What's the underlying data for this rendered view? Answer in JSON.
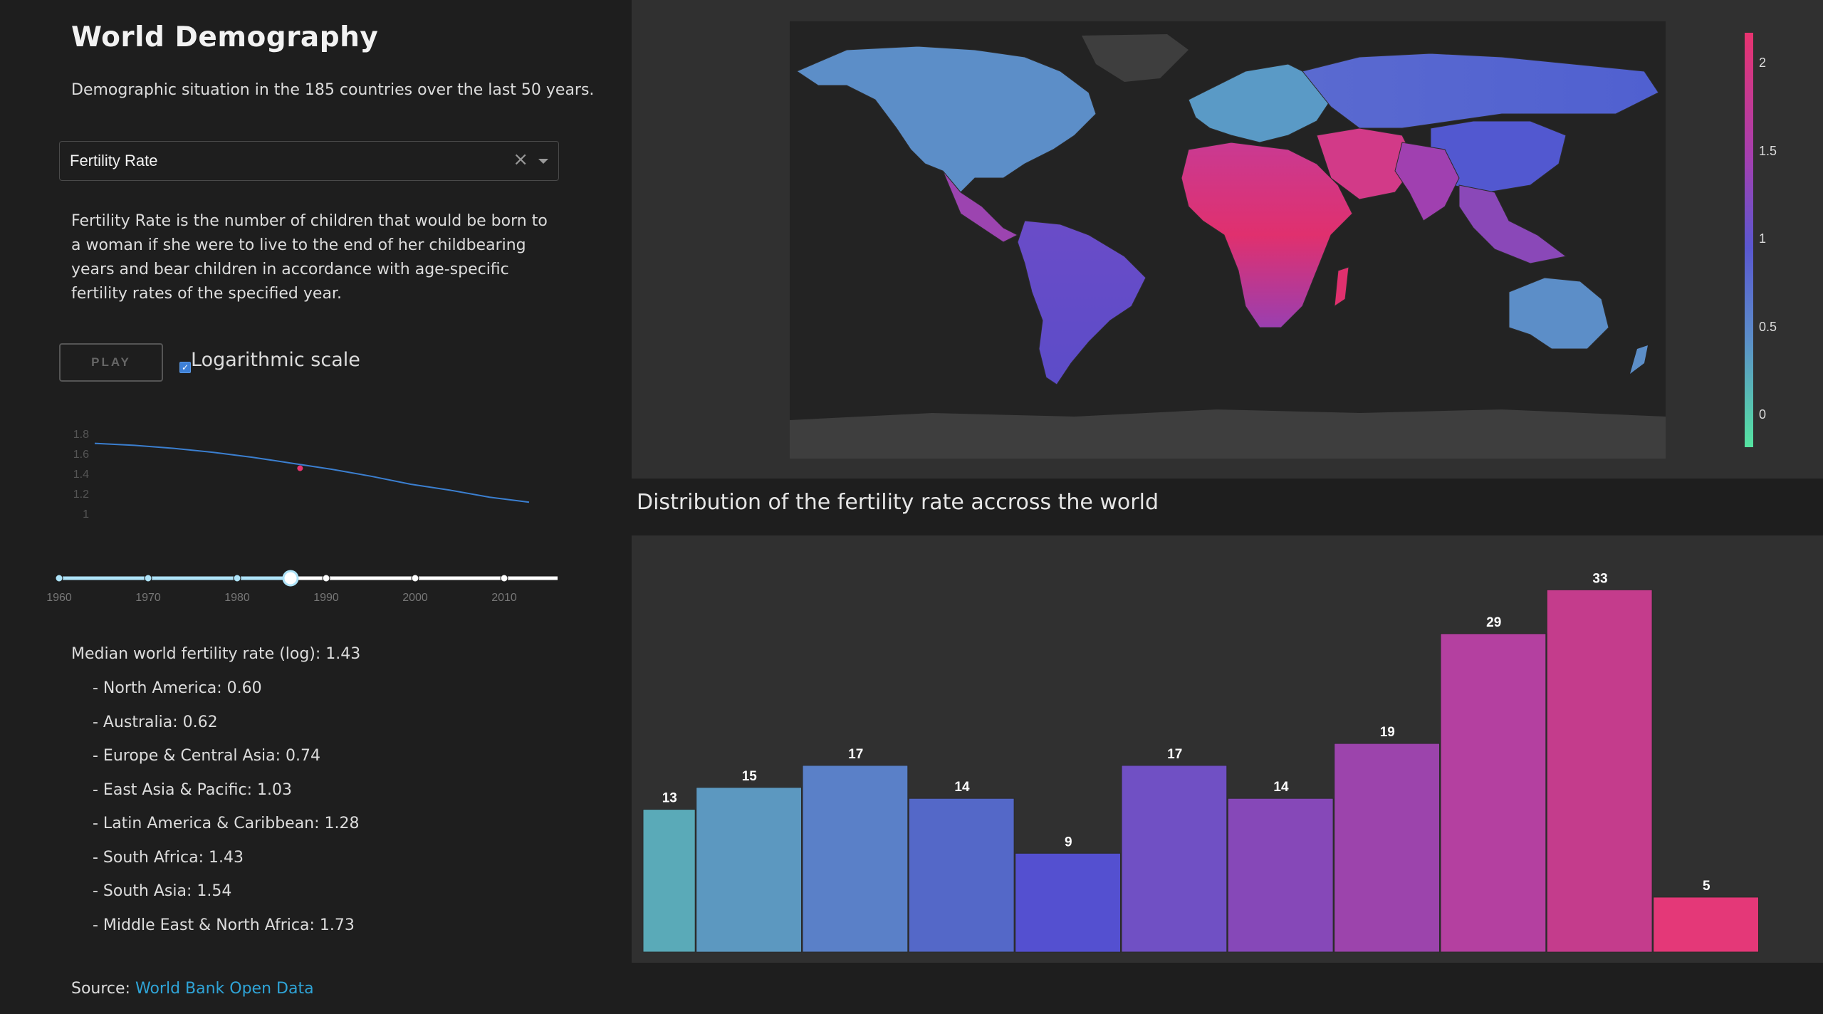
{
  "header": {
    "title": "World Demography",
    "subtitle": "Demographic situation in the 185 countries over the last 50 years."
  },
  "indicator_select": {
    "value": "Fertility Rate"
  },
  "description": "Fertility Rate is the number of children that would be born to a woman if she were to live to the end of her childbearing years and bear children in accordance with age-specific fertility rates of the specified year.",
  "controls": {
    "play_label": "PLAY",
    "log_scale_label": "Logarithmic scale",
    "log_scale_checked": true
  },
  "trend_chart": {
    "type": "line",
    "y_ticks": [
      "1.8",
      "1.6",
      "1.4",
      "1.2",
      "1"
    ],
    "ylim": [
      1.0,
      1.8
    ],
    "x": [
      1960,
      1965,
      1970,
      1975,
      1980,
      1985,
      1990,
      1995,
      2000,
      2005,
      2010,
      2015
    ],
    "y": [
      1.71,
      1.69,
      1.66,
      1.62,
      1.57,
      1.51,
      1.45,
      1.38,
      1.3,
      1.24,
      1.17,
      1.12
    ],
    "highlight": {
      "x": 1986,
      "y": 1.46
    },
    "line_color": "#3b7fd0",
    "highlight_color": "#e8336f"
  },
  "year_slider": {
    "min": 1960,
    "max": 2016,
    "value": 1986,
    "marks": [
      "1960",
      "1970",
      "1980",
      "1990",
      "2000",
      "2010"
    ],
    "track_color": "#aee3f8"
  },
  "stats": {
    "median": "Median world fertility rate (log): 1.43",
    "regions": [
      "- North America: 0.60",
      "- Australia: 0.62",
      "- Europe & Central Asia: 0.74",
      "- East Asia & Pacific: 1.03",
      "- Latin America & Caribbean: 1.28",
      "- South Africa: 1.43",
      "- South Asia: 1.54",
      "- Middle East & North Africa: 1.73"
    ]
  },
  "source": {
    "prefix": "Source:",
    "link_text": "World Bank Open Data"
  },
  "map": {
    "colorbar_ticks": [
      "2",
      "1.5",
      "1",
      "0.5",
      "0"
    ],
    "colorscale": [
      "#55e3a0",
      "#5b8ec9",
      "#5a58d0",
      "#a53fb0",
      "#e8336f"
    ]
  },
  "histogram_title": "Distribution of the fertility rate accross the world",
  "chart_data": {
    "type": "bar",
    "values": [
      13,
      15,
      17,
      14,
      9,
      17,
      14,
      19,
      29,
      33,
      5
    ],
    "colors": [
      "#5aaab8",
      "#5c98c0",
      "#5a80c8",
      "#5468c8",
      "#5450d0",
      "#7050c4",
      "#8648b8",
      "#9c44ac",
      "#b440a0",
      "#c43c8c",
      "#e43878"
    ],
    "data_labels": [
      "13",
      "15",
      "17",
      "14",
      "9",
      "17",
      "14",
      "19",
      "29",
      "33",
      "5"
    ],
    "ylim": [
      0,
      36
    ]
  }
}
